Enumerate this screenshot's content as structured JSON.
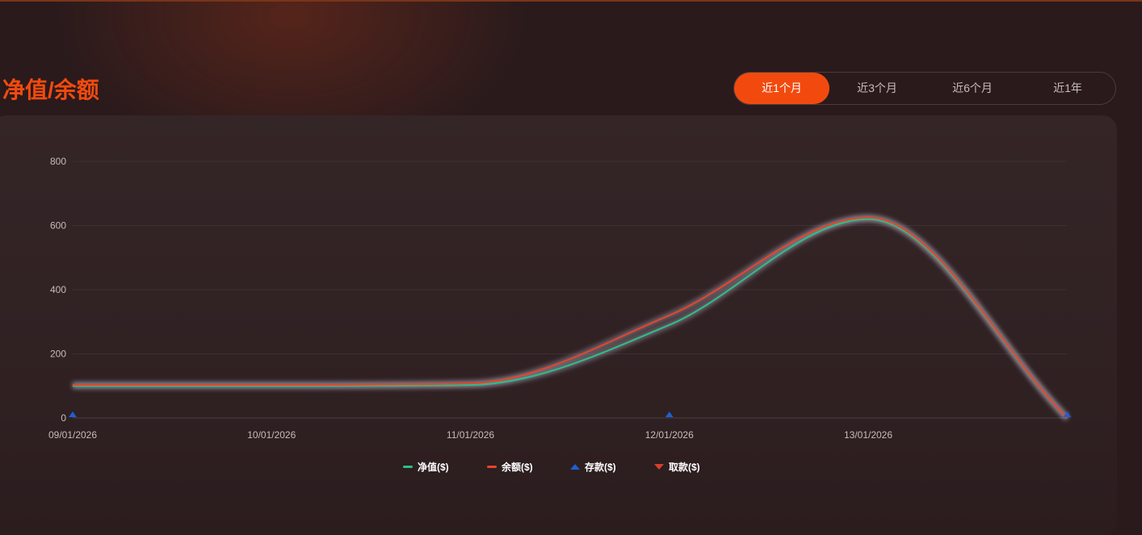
{
  "header": {
    "title": "净值/余额"
  },
  "range_tabs": [
    {
      "label": "近1个月",
      "active": true
    },
    {
      "label": "近3个月",
      "active": false
    },
    {
      "label": "近6个月",
      "active": false
    },
    {
      "label": "近1年",
      "active": false
    }
  ],
  "colors": {
    "accent": "#f24a0e",
    "equity": "#2bbf8a",
    "balance": "#e8442a",
    "deposit": "#1f5fd1",
    "withdraw": "#d6402a"
  },
  "chart_data": {
    "type": "line",
    "x_ticks": [
      "09/01/2026",
      "10/01/2026",
      "11/01/2026",
      "12/01/2026",
      "13/01/2026"
    ],
    "y_ticks": [
      0,
      200,
      400,
      600,
      800
    ],
    "ylim": [
      0,
      800
    ],
    "grid": true,
    "legend_position": "bottom-center",
    "series": [
      {
        "name": "净值($)",
        "kind": "line",
        "color": "#2bbf8a",
        "points": [
          [
            "09/01/2026",
            100
          ],
          [
            "10/01/2026",
            100
          ],
          [
            "11/01/2026",
            103
          ],
          [
            "12/01/2026",
            290
          ],
          [
            "13/01/2026",
            620
          ],
          [
            "14/01/2026",
            0
          ]
        ]
      },
      {
        "name": "余额($)",
        "kind": "line",
        "color": "#e8442a",
        "points": [
          [
            "09/01/2026",
            103
          ],
          [
            "10/01/2026",
            103
          ],
          [
            "11/01/2026",
            108
          ],
          [
            "12/01/2026",
            320
          ],
          [
            "13/01/2026",
            625
          ],
          [
            "14/01/2026",
            0
          ]
        ]
      },
      {
        "name": "存款($)",
        "kind": "marker-up",
        "color": "#1f5fd1",
        "points": [
          [
            "09/01/2026",
            0
          ],
          [
            "12/01/2026",
            0
          ],
          [
            "14/01/2026",
            0
          ]
        ]
      },
      {
        "name": "取款($)",
        "kind": "marker-down",
        "color": "#d6402a",
        "points": []
      }
    ]
  }
}
